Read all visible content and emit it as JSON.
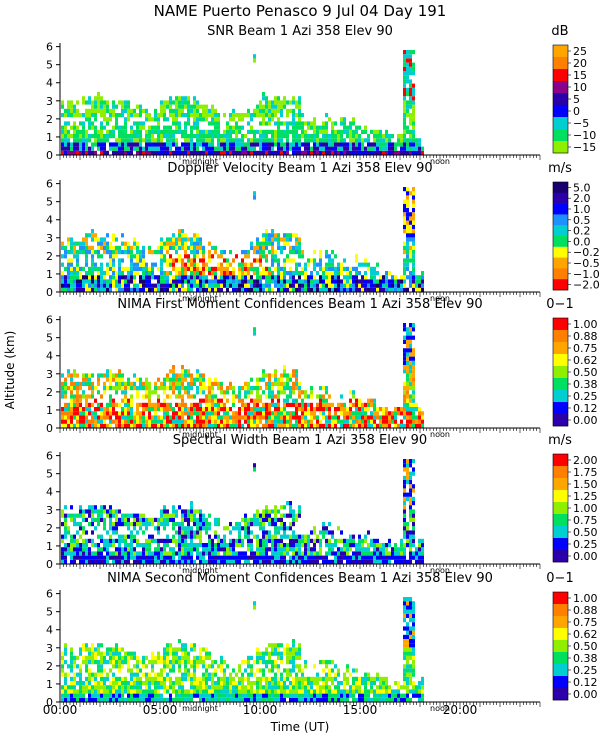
{
  "header": {
    "title": "NAME Puerto Penasco   9 Jul 04 Day 191"
  },
  "axes": {
    "y_label": "Altitude (km)",
    "x_label": "Time (UT)",
    "x_ticks": [
      "00:00",
      "05:00",
      "10:00",
      "15:00",
      "20:00"
    ],
    "x_tick_hours": [
      0,
      5,
      10,
      15,
      20
    ],
    "y_ticks": [
      "0",
      "1",
      "2",
      "3",
      "4",
      "5",
      "6"
    ],
    "marker_midnight": "midnight",
    "marker_noon": "noon"
  },
  "chart_data": [
    {
      "type": "heatmap",
      "title": "SNR Beam 1 Azi 358 Elev 90",
      "unit": "dB",
      "xlabel": "Time (UT)",
      "ylabel": "Altitude (km)",
      "xlim": [
        0,
        24
      ],
      "ylim": [
        0,
        6.2
      ],
      "colorbar_labels": [
        "25",
        "20",
        "15",
        "10",
        "5",
        "0",
        "−5",
        "−10",
        "−15"
      ],
      "colorbar_colors": [
        "#ffa500",
        "#ff7f00",
        "#ff0000",
        "#8b008b",
        "#2b00aa",
        "#0000ff",
        "#00ced1",
        "#00e060",
        "#90ee00"
      ],
      "profile": "snr",
      "data_end_hour": 18.2
    },
    {
      "type": "heatmap",
      "title": "Doppler Velocity Beam 1 Azi 358 Elev 90",
      "unit": "m/s",
      "xlabel": "Time (UT)",
      "ylabel": "Altitude (km)",
      "xlim": [
        0,
        24
      ],
      "ylim": [
        0,
        6.2
      ],
      "colorbar_labels": [
        "5.0",
        "2.0",
        "1.0",
        "0.5",
        "0.2",
        "0.0",
        "−0.2",
        "−0.5",
        "−1.0",
        "−2.0"
      ],
      "colorbar_colors": [
        "#1a006e",
        "#2b00aa",
        "#0000ff",
        "#1e90ff",
        "#00ced1",
        "#00e060",
        "#ffff00",
        "#ffa500",
        "#ff7f00",
        "#ff0000"
      ],
      "profile": "doppler",
      "data_end_hour": 18.2
    },
    {
      "type": "heatmap",
      "title": "NIMA First Moment Confidences Beam 1 Azi 358 Elev 90",
      "unit": "0−1",
      "xlabel": "Time (UT)",
      "ylabel": "Altitude (km)",
      "xlim": [
        0,
        24
      ],
      "ylim": [
        0,
        6.2
      ],
      "colorbar_labels": [
        "1.00",
        "0.88",
        "0.75",
        "0.62",
        "0.50",
        "0.38",
        "0.25",
        "0.12",
        "0.00"
      ],
      "colorbar_colors": [
        "#ff0000",
        "#ff7f00",
        "#ffa500",
        "#ffff00",
        "#90ee00",
        "#00e060",
        "#00ced1",
        "#0000ff",
        "#2b00aa"
      ],
      "profile": "conf1",
      "data_end_hour": 18.2
    },
    {
      "type": "heatmap",
      "title": "Spectral Width Beam 1 Azi 358 Elev 90",
      "unit": "m/s",
      "xlabel": "Time (UT)",
      "ylabel": "Altitude (km)",
      "xlim": [
        0,
        24
      ],
      "ylim": [
        0,
        6.2
      ],
      "colorbar_labels": [
        "2.00",
        "1.75",
        "1.50",
        "1.25",
        "1.00",
        "0.75",
        "0.50",
        "0.25",
        "0.00"
      ],
      "colorbar_colors": [
        "#ff0000",
        "#ff7f00",
        "#ffa500",
        "#ffff00",
        "#90ee00",
        "#00e060",
        "#00ced1",
        "#0000ff",
        "#2b00aa"
      ],
      "profile": "width",
      "data_end_hour": 18.2
    },
    {
      "type": "heatmap",
      "title": "NIMA Second Moment Confidences Beam 1 Azi 358 Elev 90",
      "unit": "0−1",
      "xlabel": "Time (UT)",
      "ylabel": "Altitude (km)",
      "xlim": [
        0,
        24
      ],
      "ylim": [
        0,
        6.2
      ],
      "colorbar_labels": [
        "1.00",
        "0.88",
        "0.75",
        "0.62",
        "0.50",
        "0.38",
        "0.25",
        "0.12",
        "0.00"
      ],
      "colorbar_colors": [
        "#ff0000",
        "#ff7f00",
        "#ffa500",
        "#ffff00",
        "#90ee00",
        "#00e060",
        "#00ced1",
        "#0000ff",
        "#2b00aa"
      ],
      "profile": "conf2",
      "data_end_hour": 18.2
    }
  ]
}
